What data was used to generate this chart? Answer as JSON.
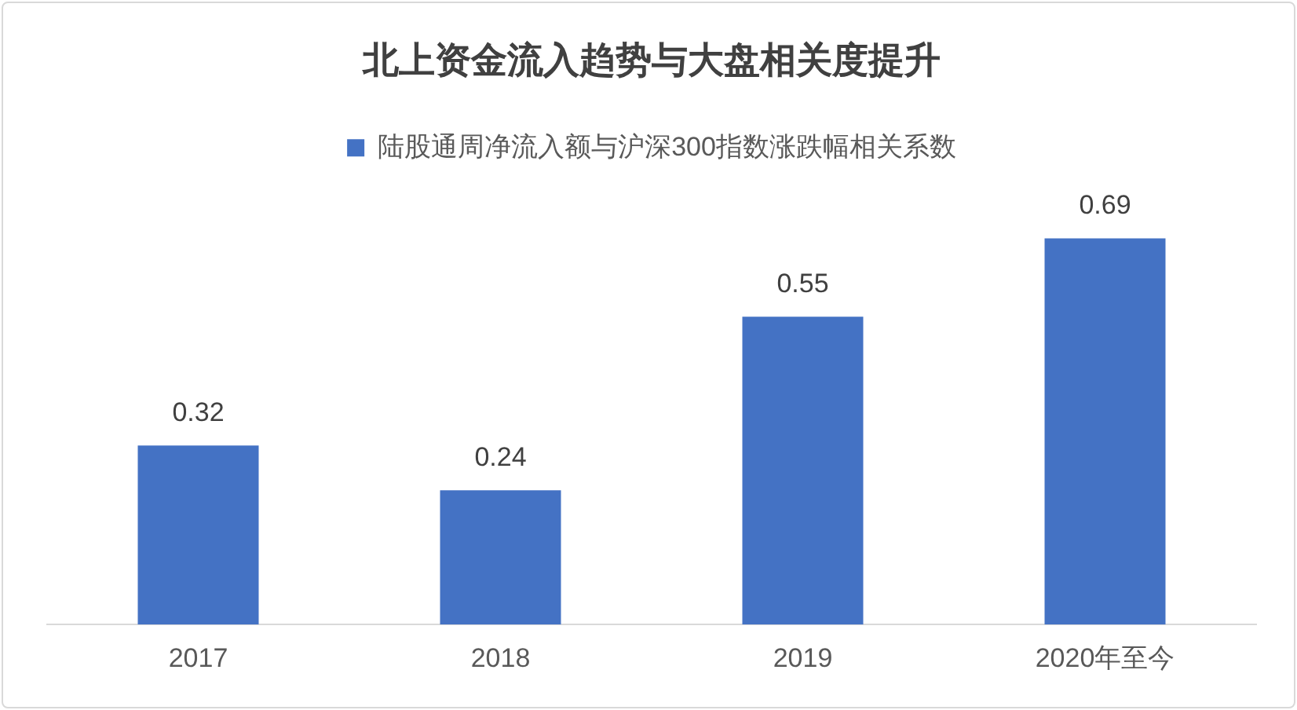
{
  "chart_data": {
    "type": "bar",
    "title": "北上资金流入趋势与大盘相关度提升",
    "categories": [
      "2017",
      "2018",
      "2019",
      "2020年至今"
    ],
    "series": [
      {
        "name": "陆股通周净流入额与沪深300指数涨跌幅相关系数",
        "color": "#4472c4",
        "values": [
          0.32,
          0.24,
          0.55,
          0.69
        ]
      }
    ],
    "data_labels": true,
    "legend": "top",
    "grid": false
  }
}
